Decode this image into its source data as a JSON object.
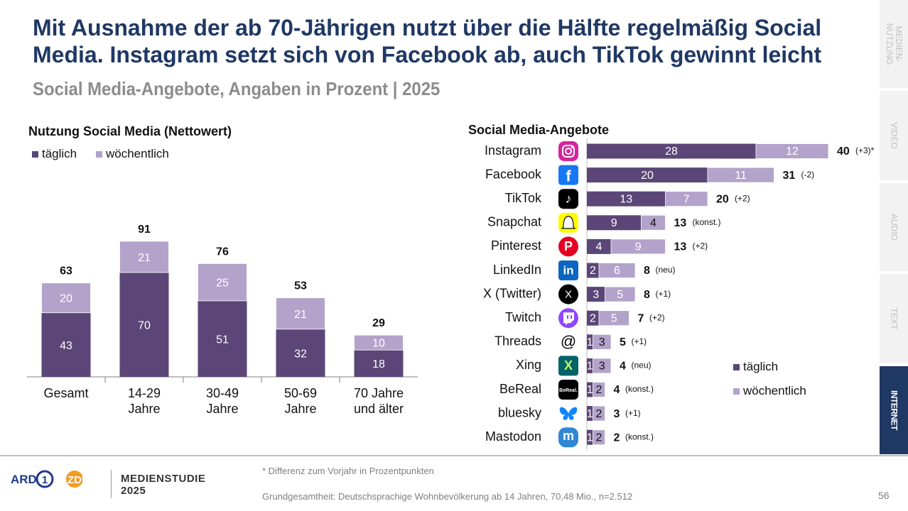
{
  "title": "Mit Ausnahme der ab 70-Jährigen nutzt über die Hälfte regelmäßig Social Media. Instagram setzt sich von Facebook ab, auch TikTok gewinnt leicht",
  "subtitle": "Social Media-Angebote, Angaben in Prozent | 2025",
  "colors": {
    "taeglich": "#5b4677",
    "woechentlich": "#b3a2ca",
    "title": "#1f3864",
    "sidebar_active": "#1f3864"
  },
  "sidebar": {
    "tabs": [
      {
        "label": "MEDIEN-\nNUTZUNG",
        "active": false
      },
      {
        "label": "VIDEO",
        "active": false
      },
      {
        "label": "AUDIO",
        "active": false
      },
      {
        "label": "TEXT",
        "active": false
      },
      {
        "label": "INTERNET",
        "active": true
      }
    ]
  },
  "chart_data": [
    {
      "type": "bar",
      "stacked": true,
      "title": "Nutzung Social Media (Nettowert)",
      "legend": [
        "täglich",
        "wöchentlich"
      ],
      "categories": [
        "Gesamt",
        "14-29\nJahre",
        "30-49\nJahre",
        "50-69\nJahre",
        "70 Jahre\nund älter"
      ],
      "series": [
        {
          "name": "täglich",
          "values": [
            43,
            70,
            51,
            32,
            18
          ]
        },
        {
          "name": "wöchentlich",
          "values": [
            20,
            21,
            25,
            21,
            10
          ]
        }
      ],
      "totals": [
        63,
        91,
        76,
        53,
        29
      ],
      "ylim": [
        0,
        100
      ]
    },
    {
      "type": "bar",
      "orientation": "horizontal",
      "stacked": true,
      "title": "Social Media-Angebote",
      "legend": [
        "täglich",
        "wöchentlich"
      ],
      "legend_position": "bottom-right",
      "categories": [
        "Instagram",
        "Facebook",
        "TikTok",
        "Snapchat",
        "Pinterest",
        "LinkedIn",
        "X (Twitter)",
        "Twitch",
        "Threads",
        "Xing",
        "BeReal",
        "bluesky",
        "Mastodon"
      ],
      "icons": [
        "instagram-icon",
        "facebook-icon",
        "tiktok-icon",
        "snapchat-icon",
        "pinterest-icon",
        "linkedin-icon",
        "x-twitter-icon",
        "twitch-icon",
        "threads-icon",
        "xing-icon",
        "bereal-icon",
        "bluesky-icon",
        "mastodon-icon"
      ],
      "icon_text": {
        "BeReal": "BeReal."
      },
      "series": [
        {
          "name": "täglich",
          "values": [
            28,
            20,
            13,
            9,
            4,
            2,
            3,
            2,
            1,
            1,
            1,
            1,
            1
          ]
        },
        {
          "name": "wöchentlich",
          "values": [
            12,
            11,
            7,
            4,
            9,
            6,
            5,
            5,
            3,
            3,
            2,
            2,
            2
          ]
        }
      ],
      "totals": [
        40,
        31,
        20,
        13,
        13,
        8,
        8,
        7,
        5,
        4,
        4,
        3,
        2
      ],
      "changes": [
        "(+3)*",
        "(-2)",
        "(+2)",
        "(konst.)",
        "(+2)",
        "(neu)",
        "(+1)",
        "(+2)",
        "(+1)",
        "(neu)",
        "(konst.)",
        "(+1)",
        "(konst.)"
      ]
    }
  ],
  "footer": {
    "note": "* Differenz zum Vorjahr in Prozentpunkten",
    "base": "Grundgesamtheit: Deutschsprachige Wohnbevölkerung ab 14 Jahren, 70,48 Mio., n=2.512",
    "page": "56",
    "studie_line1": "MEDIENSTUDIE",
    "studie_line2": "2025",
    "logo_ard": "ARD",
    "logo_zdf": "ZDF"
  }
}
